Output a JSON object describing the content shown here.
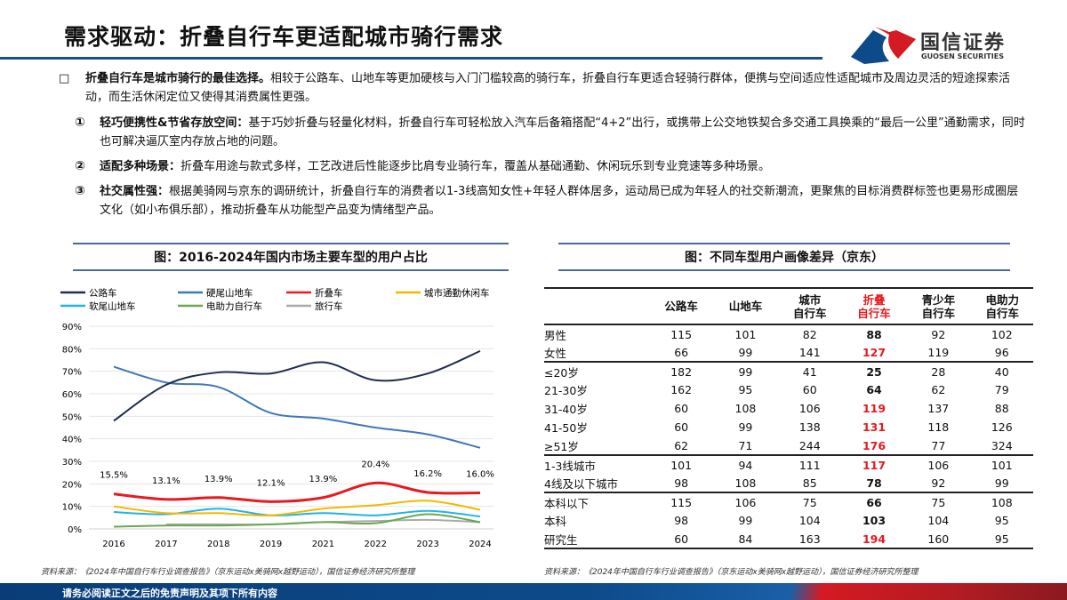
{
  "header": {
    "title": "需求驱动：折叠自行车更适配城市骑行需求",
    "logo_cn": "国信证券",
    "logo_en": "GUOSEN SECURITIES"
  },
  "intro": {
    "bullet": "□",
    "bold": "折叠自行车是城市骑行的最佳选择。",
    "text": "相较于公路车、山地车等更加硬核与入门门槛较高的骑行车，折叠自行车更适合轻骑行群体，便携与空间适应性适配城市及周边灵活的短途探索活动，而生活休闲定位又使得其消费属性更强。"
  },
  "points": [
    {
      "num": "①",
      "bold": "轻巧便携性&节省存放空间：",
      "text": "基于巧妙折叠与轻量化材料，折叠自行车可轻松放入汽车后备箱搭配“4+2”出行，或携带上公交地铁契合多交通工具换乘的“最后一公里”通勤需求，同时也可解决逼仄室内存放占地的问题。"
    },
    {
      "num": "②",
      "bold": "适配多种场景：",
      "text": "折叠车用途与款式多样，工艺改进后性能逐步比肩专业骑行车，覆盖从基础通勤、休闲玩乐到专业竞速等多种场景。"
    },
    {
      "num": "③",
      "bold": "社交属性强：",
      "text": "根据美骑网与京东的调研统计，折叠自行车的消费者以1-3线高知女性+年轻人群体居多，运动局已成为年轻人的社交新潮流，更聚焦的目标消费群标签也更易形成圈层文化（如小布俱乐部），推动折叠车从功能型产品变为情绪型产品。"
    }
  ],
  "chart_data": {
    "type": "line",
    "title": "图：2016-2024年国内市场主要车型的用户占比",
    "categories": [
      "2016",
      "2017",
      "2018",
      "2019",
      "2021",
      "2022",
      "2023",
      "2024"
    ],
    "ylim": [
      0,
      90
    ],
    "yticks": [
      "0%",
      "10%",
      "20%",
      "30%",
      "40%",
      "50%",
      "60%",
      "70%",
      "80%",
      "90%"
    ],
    "grid": true,
    "legend": "top",
    "series": [
      {
        "name": "公路车",
        "color": "#1f2d4e",
        "values": [
          48,
          64,
          69.5,
          69,
          74,
          66,
          69,
          79
        ]
      },
      {
        "name": "硬尾山地车",
        "color": "#3e78b8",
        "values": [
          72,
          65,
          63,
          51.5,
          49,
          45,
          42,
          36
        ]
      },
      {
        "name": "折叠车",
        "color": "#e8191f",
        "values": [
          15.5,
          13.1,
          13.9,
          12.1,
          13.9,
          20.4,
          16.2,
          16.0
        ],
        "labels": [
          "15.5%",
          "13.1%",
          "13.9%",
          "12.1%",
          "13.9%",
          "20.4%",
          "16.2%",
          "16.0%"
        ]
      },
      {
        "name": "城市通勤休闲车",
        "color": "#f5b800",
        "values": [
          10,
          7,
          7,
          6,
          9,
          10.5,
          12.5,
          8.5
        ]
      },
      {
        "name": "软尾山地车",
        "color": "#1fb4e8",
        "values": [
          7.5,
          6.5,
          9,
          6,
          7,
          6,
          8,
          5.5
        ]
      },
      {
        "name": "电助力自行车",
        "color": "#6aa84f",
        "values": [
          1,
          1.5,
          1.5,
          2,
          3,
          2.5,
          6.5,
          3
        ]
      },
      {
        "name": "旅行车",
        "color": "#aaaaaa",
        "values": [
          null,
          2,
          2,
          2,
          3,
          3.5,
          4,
          3
        ]
      }
    ]
  },
  "table": {
    "title": "图：不同车型用户画像差异（京东）",
    "headers": [
      "公路车",
      "山地车",
      "城市\n自行车",
      "折叠\n自行车",
      "青少年\n自行车",
      "电助力\n自行车"
    ],
    "rows": [
      {
        "label": "男性",
        "values": [
          "115",
          "101",
          "82",
          "88",
          "92",
          "102"
        ],
        "highlight": false
      },
      {
        "label": "女性",
        "values": [
          "66",
          "99",
          "141",
          "127",
          "119",
          "96"
        ],
        "highlight": true
      },
      {
        "label": "≤20岁",
        "values": [
          "182",
          "99",
          "41",
          "25",
          "28",
          "40"
        ],
        "highlight": false
      },
      {
        "label": "21-30岁",
        "values": [
          "162",
          "95",
          "60",
          "64",
          "62",
          "79"
        ],
        "highlight": false
      },
      {
        "label": "31-40岁",
        "values": [
          "60",
          "108",
          "106",
          "119",
          "137",
          "88"
        ],
        "highlight": true
      },
      {
        "label": "41-50岁",
        "values": [
          "60",
          "99",
          "138",
          "131",
          "118",
          "126"
        ],
        "highlight": true
      },
      {
        "label": "≥51岁",
        "values": [
          "62",
          "71",
          "244",
          "176",
          "77",
          "324"
        ],
        "highlight": true
      },
      {
        "label": "1-3线城市",
        "values": [
          "101",
          "94",
          "111",
          "117",
          "106",
          "101"
        ],
        "highlight": true
      },
      {
        "label": "4线及以下城市",
        "values": [
          "98",
          "108",
          "85",
          "78",
          "92",
          "99"
        ],
        "highlight": false
      },
      {
        "label": "本科以下",
        "values": [
          "115",
          "106",
          "75",
          "66",
          "75",
          "108"
        ],
        "highlight": false
      },
      {
        "label": "本科",
        "values": [
          "98",
          "99",
          "104",
          "103",
          "104",
          "95"
        ],
        "highlight": false
      },
      {
        "label": "研究生",
        "values": [
          "60",
          "84",
          "163",
          "194",
          "160",
          "95"
        ],
        "highlight": true
      }
    ]
  },
  "source": "资料来源：《2024年中国自行车行业调查报告》（京东运动x美骑网x越野运动），国信证券经济研究所整理",
  "footer": "请务必阅读正文之后的免责声明及其项下所有内容"
}
